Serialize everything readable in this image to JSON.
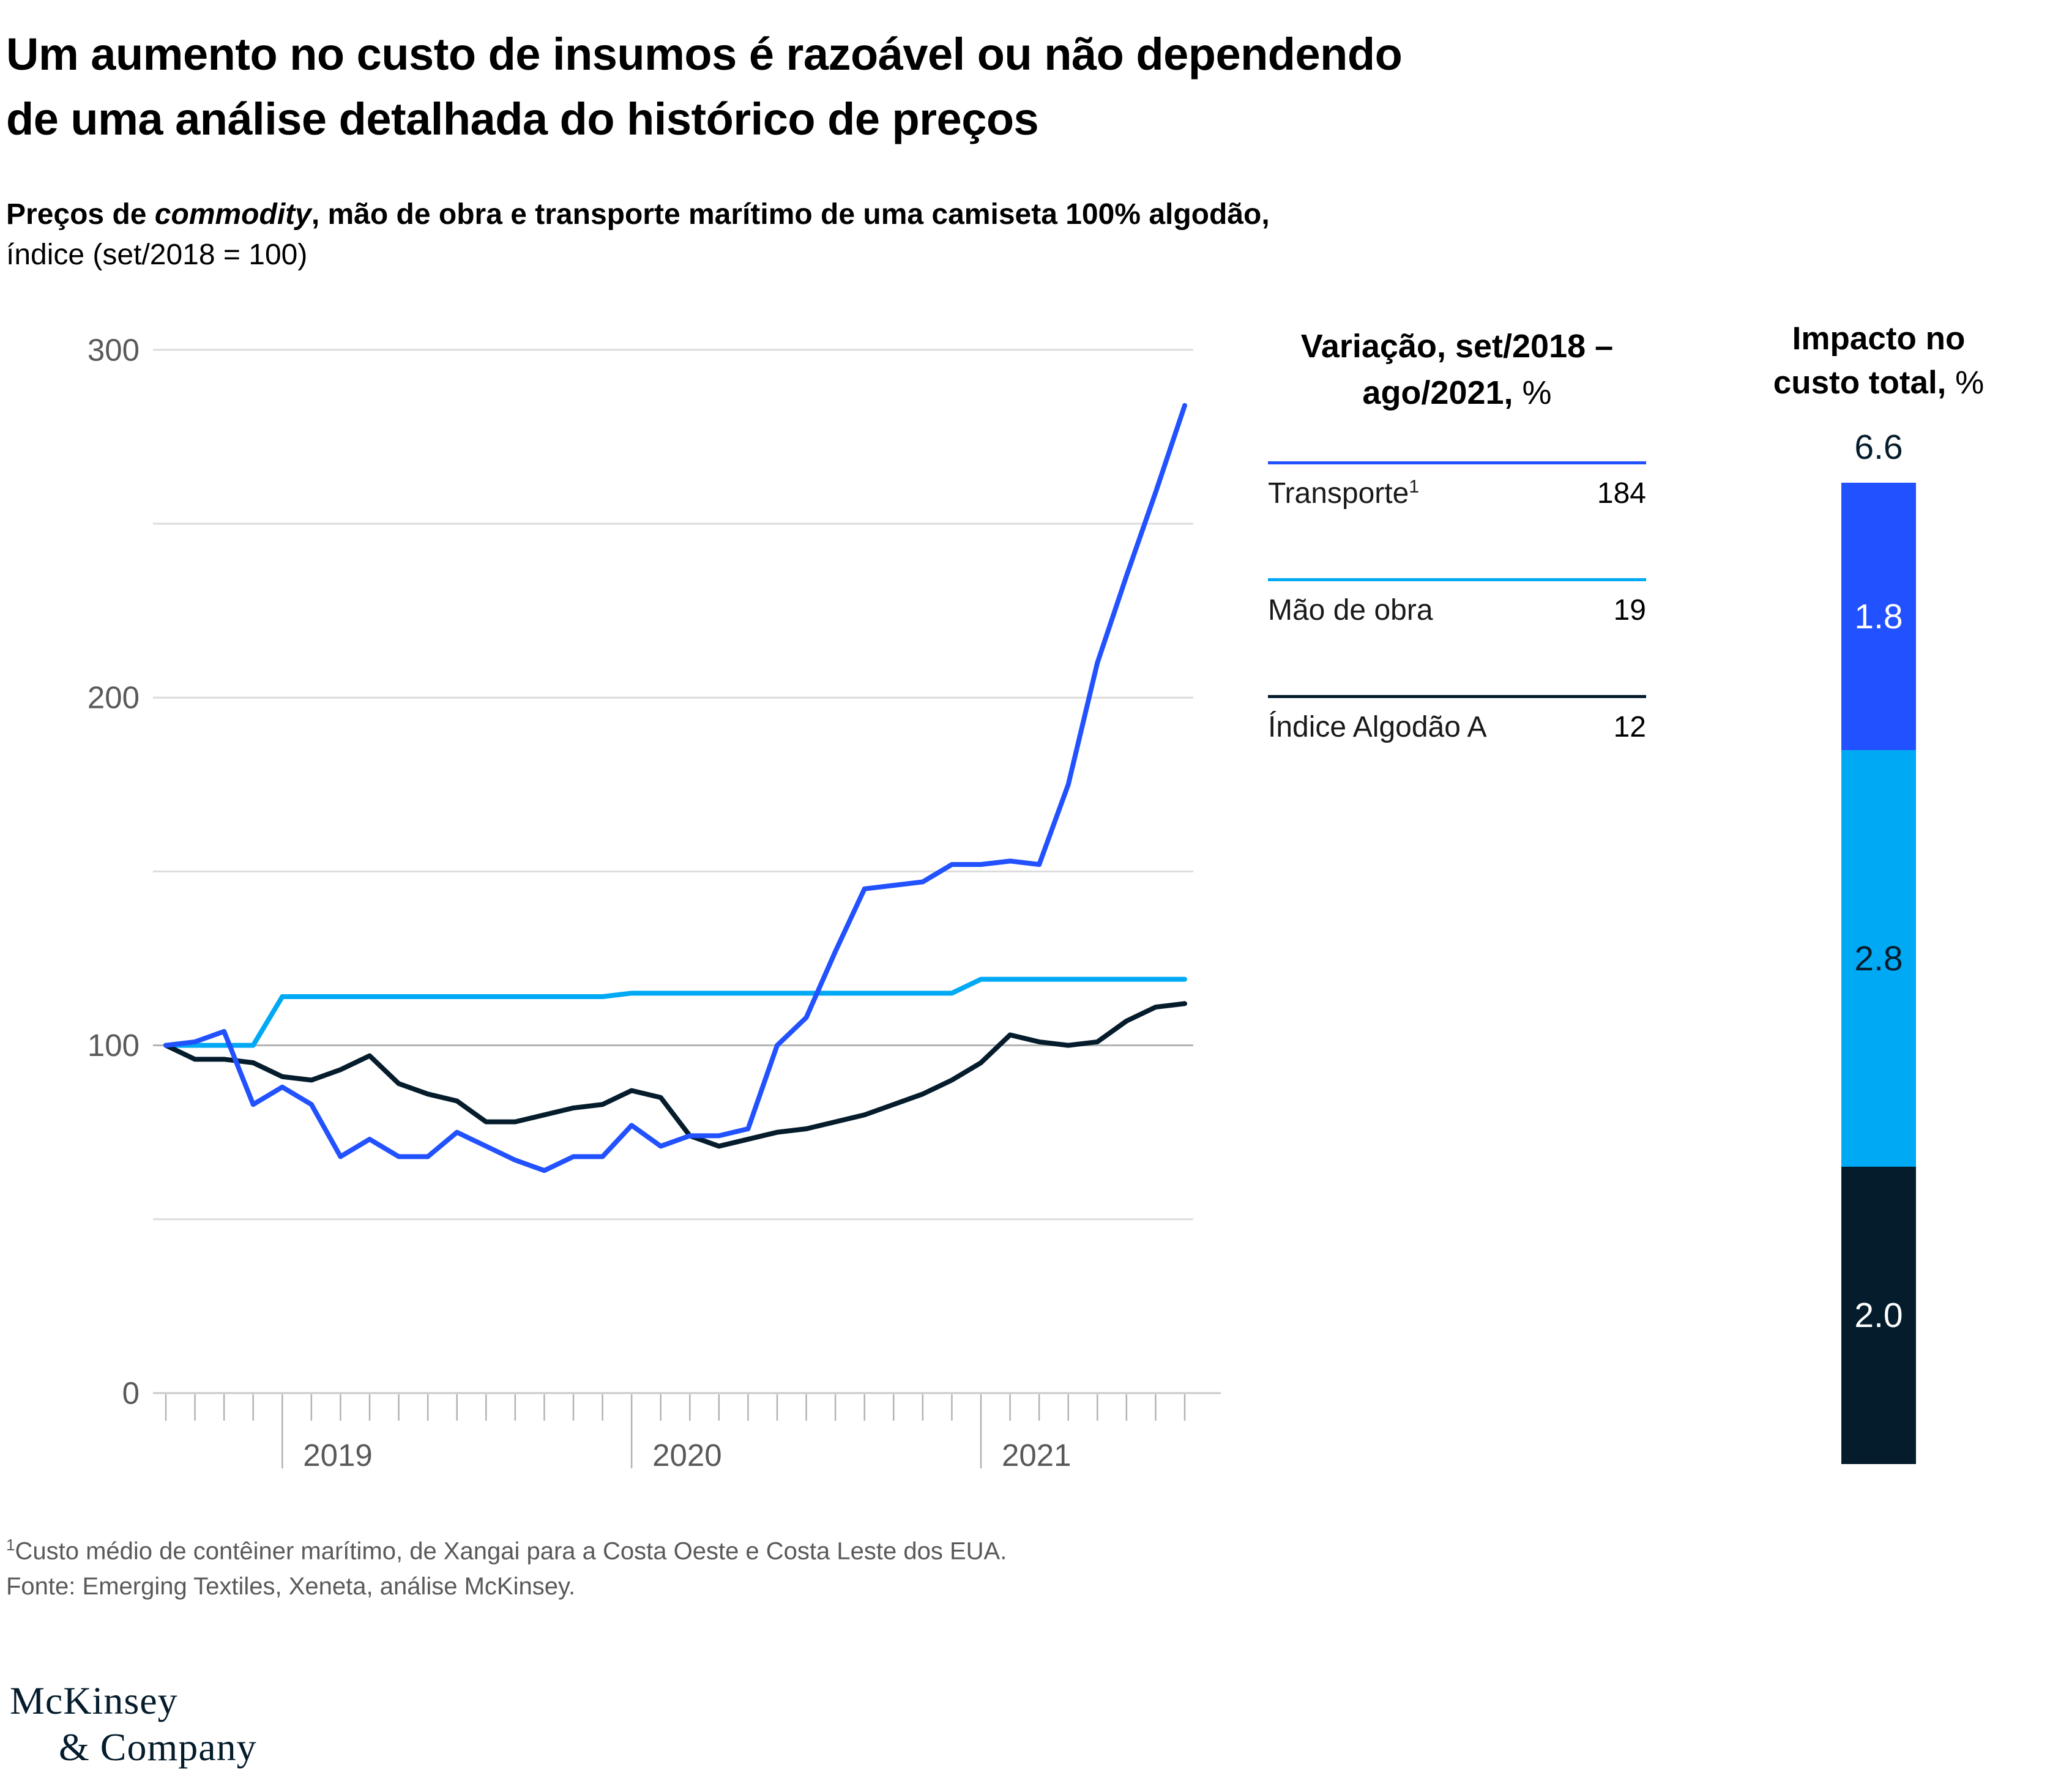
{
  "title": {
    "line1": "Um aumento no custo de insumos é razoável ou não dependendo",
    "line2": "de uma análise detalhada do histórico de preços"
  },
  "subtitle": {
    "prefix": "Preços de ",
    "italic": "commodity",
    "rest": ", mão de obra e transporte marítimo de uma camiseta 100% algodão,",
    "line2": "índice (set/2018 = 100)"
  },
  "chart_data": [
    {
      "type": "line",
      "title": "Preços de commodity, mão de obra e transporte marítimo de uma camiseta 100% algodão, índice (set/2018 = 100)",
      "x_unit": "mês",
      "x_range": [
        "set/2018",
        "ago/2021"
      ],
      "x_tick_years": [
        "2019",
        "2020",
        "2021"
      ],
      "year_tick_months": [
        4,
        16,
        28
      ],
      "months_count": 36,
      "ylim": [
        0,
        300
      ],
      "ylabel_ticks": [
        0,
        100,
        200,
        300
      ],
      "gridlines": [
        50,
        100,
        150,
        200,
        250,
        300
      ],
      "grid_base_value": 100,
      "draw_order": [
        1,
        2,
        0
      ],
      "series": [
        {
          "name": "Transporte¹",
          "color": "#2251ff",
          "values": [
            100,
            101,
            104,
            83,
            88,
            83,
            68,
            73,
            68,
            68,
            75,
            71,
            67,
            64,
            68,
            68,
            77,
            71,
            74,
            74,
            76,
            100,
            108,
            127,
            145,
            146,
            147,
            152,
            152,
            153,
            152,
            175,
            210,
            235,
            259,
            284
          ]
        },
        {
          "name": "Mão de obra",
          "color": "#00a9f4",
          "values": [
            100,
            100,
            100,
            100,
            114,
            114,
            114,
            114,
            114,
            114,
            114,
            114,
            114,
            114,
            114,
            114,
            115,
            115,
            115,
            115,
            115,
            115,
            115,
            115,
            115,
            115,
            115,
            115,
            119,
            119,
            119,
            119,
            119,
            119,
            119,
            119
          ]
        },
        {
          "name": "Índice Algodão A",
          "color": "#051c2c",
          "values": [
            100,
            96,
            96,
            95,
            91,
            90,
            93,
            97,
            89,
            86,
            84,
            78,
            78,
            80,
            82,
            83,
            87,
            85,
            74,
            71,
            73,
            75,
            76,
            78,
            80,
            83,
            86,
            90,
            95,
            103,
            101,
            100,
            101,
            107,
            111,
            112
          ]
        }
      ],
      "colors": {
        "gridline": "#dcdcdc",
        "gridline_base": "#b3b3b3",
        "axis": "#c9c9c9",
        "tick": "#b3b3b3",
        "axis_label": "#595959"
      }
    },
    {
      "type": "bar",
      "subtype": "stacked",
      "title": "Impacto no custo total, %",
      "total": 6.6,
      "segments": [
        {
          "label": "Transporte",
          "value": 1.8,
          "color": "#2251ff",
          "text_color": "#ffffff"
        },
        {
          "label": "Mão de obra",
          "value": 2.8,
          "color": "#00a9f4",
          "text_color": "#051c2c"
        },
        {
          "label": "Índice Algodão A",
          "value": 2.0,
          "color": "#051c2c",
          "text_color": "#ffffff"
        }
      ]
    }
  ],
  "legend": {
    "header_line1": "Variação, set/2018 –",
    "header_line2_bold": "ago/2021,",
    "header_pct": " %",
    "rows": [
      {
        "label": "Transporte",
        "sup": "1",
        "value": "184",
        "color": "#2251ff"
      },
      {
        "label": "Mão de obra",
        "sup": "",
        "value": "19",
        "color": "#00a9f4"
      },
      {
        "label": "Índice Algodão A",
        "sup": "",
        "value": "12",
        "color": "#051c2c"
      }
    ]
  },
  "impact": {
    "title_line1": "Impacto no",
    "title_line2_bold": "custo total,",
    "title_pct": " %",
    "total_label": "6.6",
    "segment_labels": [
      "1.8",
      "2.8",
      "2.0"
    ]
  },
  "footnote": {
    "sup": "1",
    "line1": "Custo médio de contêiner marítimo, de Xangai para a Costa Oeste e Costa Leste dos EUA.",
    "line2": "Fonte: Emerging Textiles, Xeneta, análise McKinsey."
  },
  "logo": {
    "line1": "McKinsey",
    "line2": "& Company"
  }
}
